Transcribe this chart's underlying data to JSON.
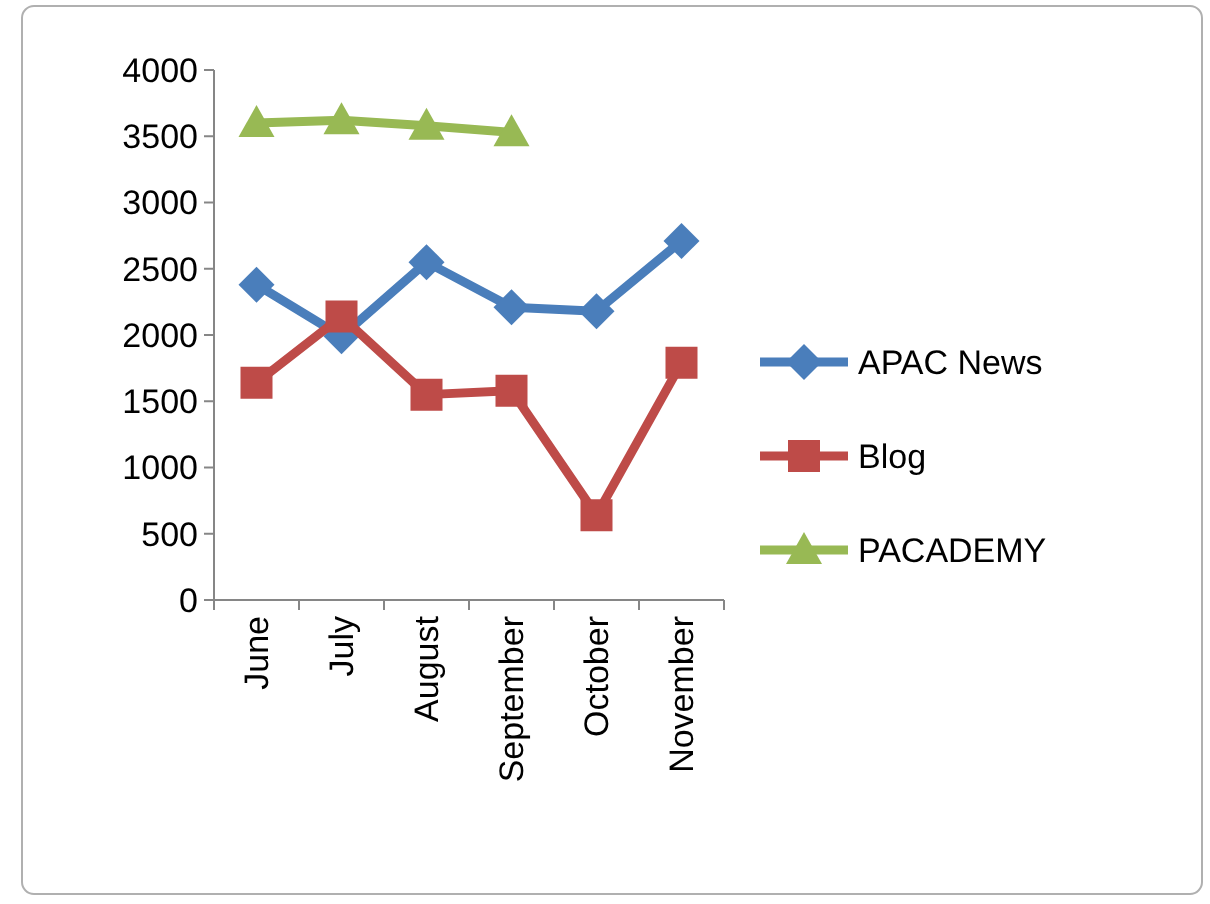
{
  "chart_data": {
    "type": "line",
    "categories": [
      "June",
      "July",
      "August",
      "September",
      "October",
      "November"
    ],
    "series": [
      {
        "name": "APAC News",
        "color": "#4a7ebb",
        "values": [
          2380,
          1990,
          2550,
          2210,
          2180,
          2710
        ],
        "marker": "diamond"
      },
      {
        "name": "Blog",
        "color": "#be4b48",
        "values": [
          1640,
          2140,
          1550,
          1580,
          640,
          1790
        ],
        "marker": "square"
      },
      {
        "name": "PACADEMY",
        "color": "#98b954",
        "values": [
          3600,
          3620,
          3580,
          3530,
          null,
          null
        ],
        "marker": "triangle"
      }
    ],
    "ylim": [
      0,
      4000
    ],
    "yticks": [
      0,
      500,
      1000,
      1500,
      2000,
      2500,
      3000,
      3500,
      4000
    ],
    "grid": false,
    "legend": "right"
  }
}
